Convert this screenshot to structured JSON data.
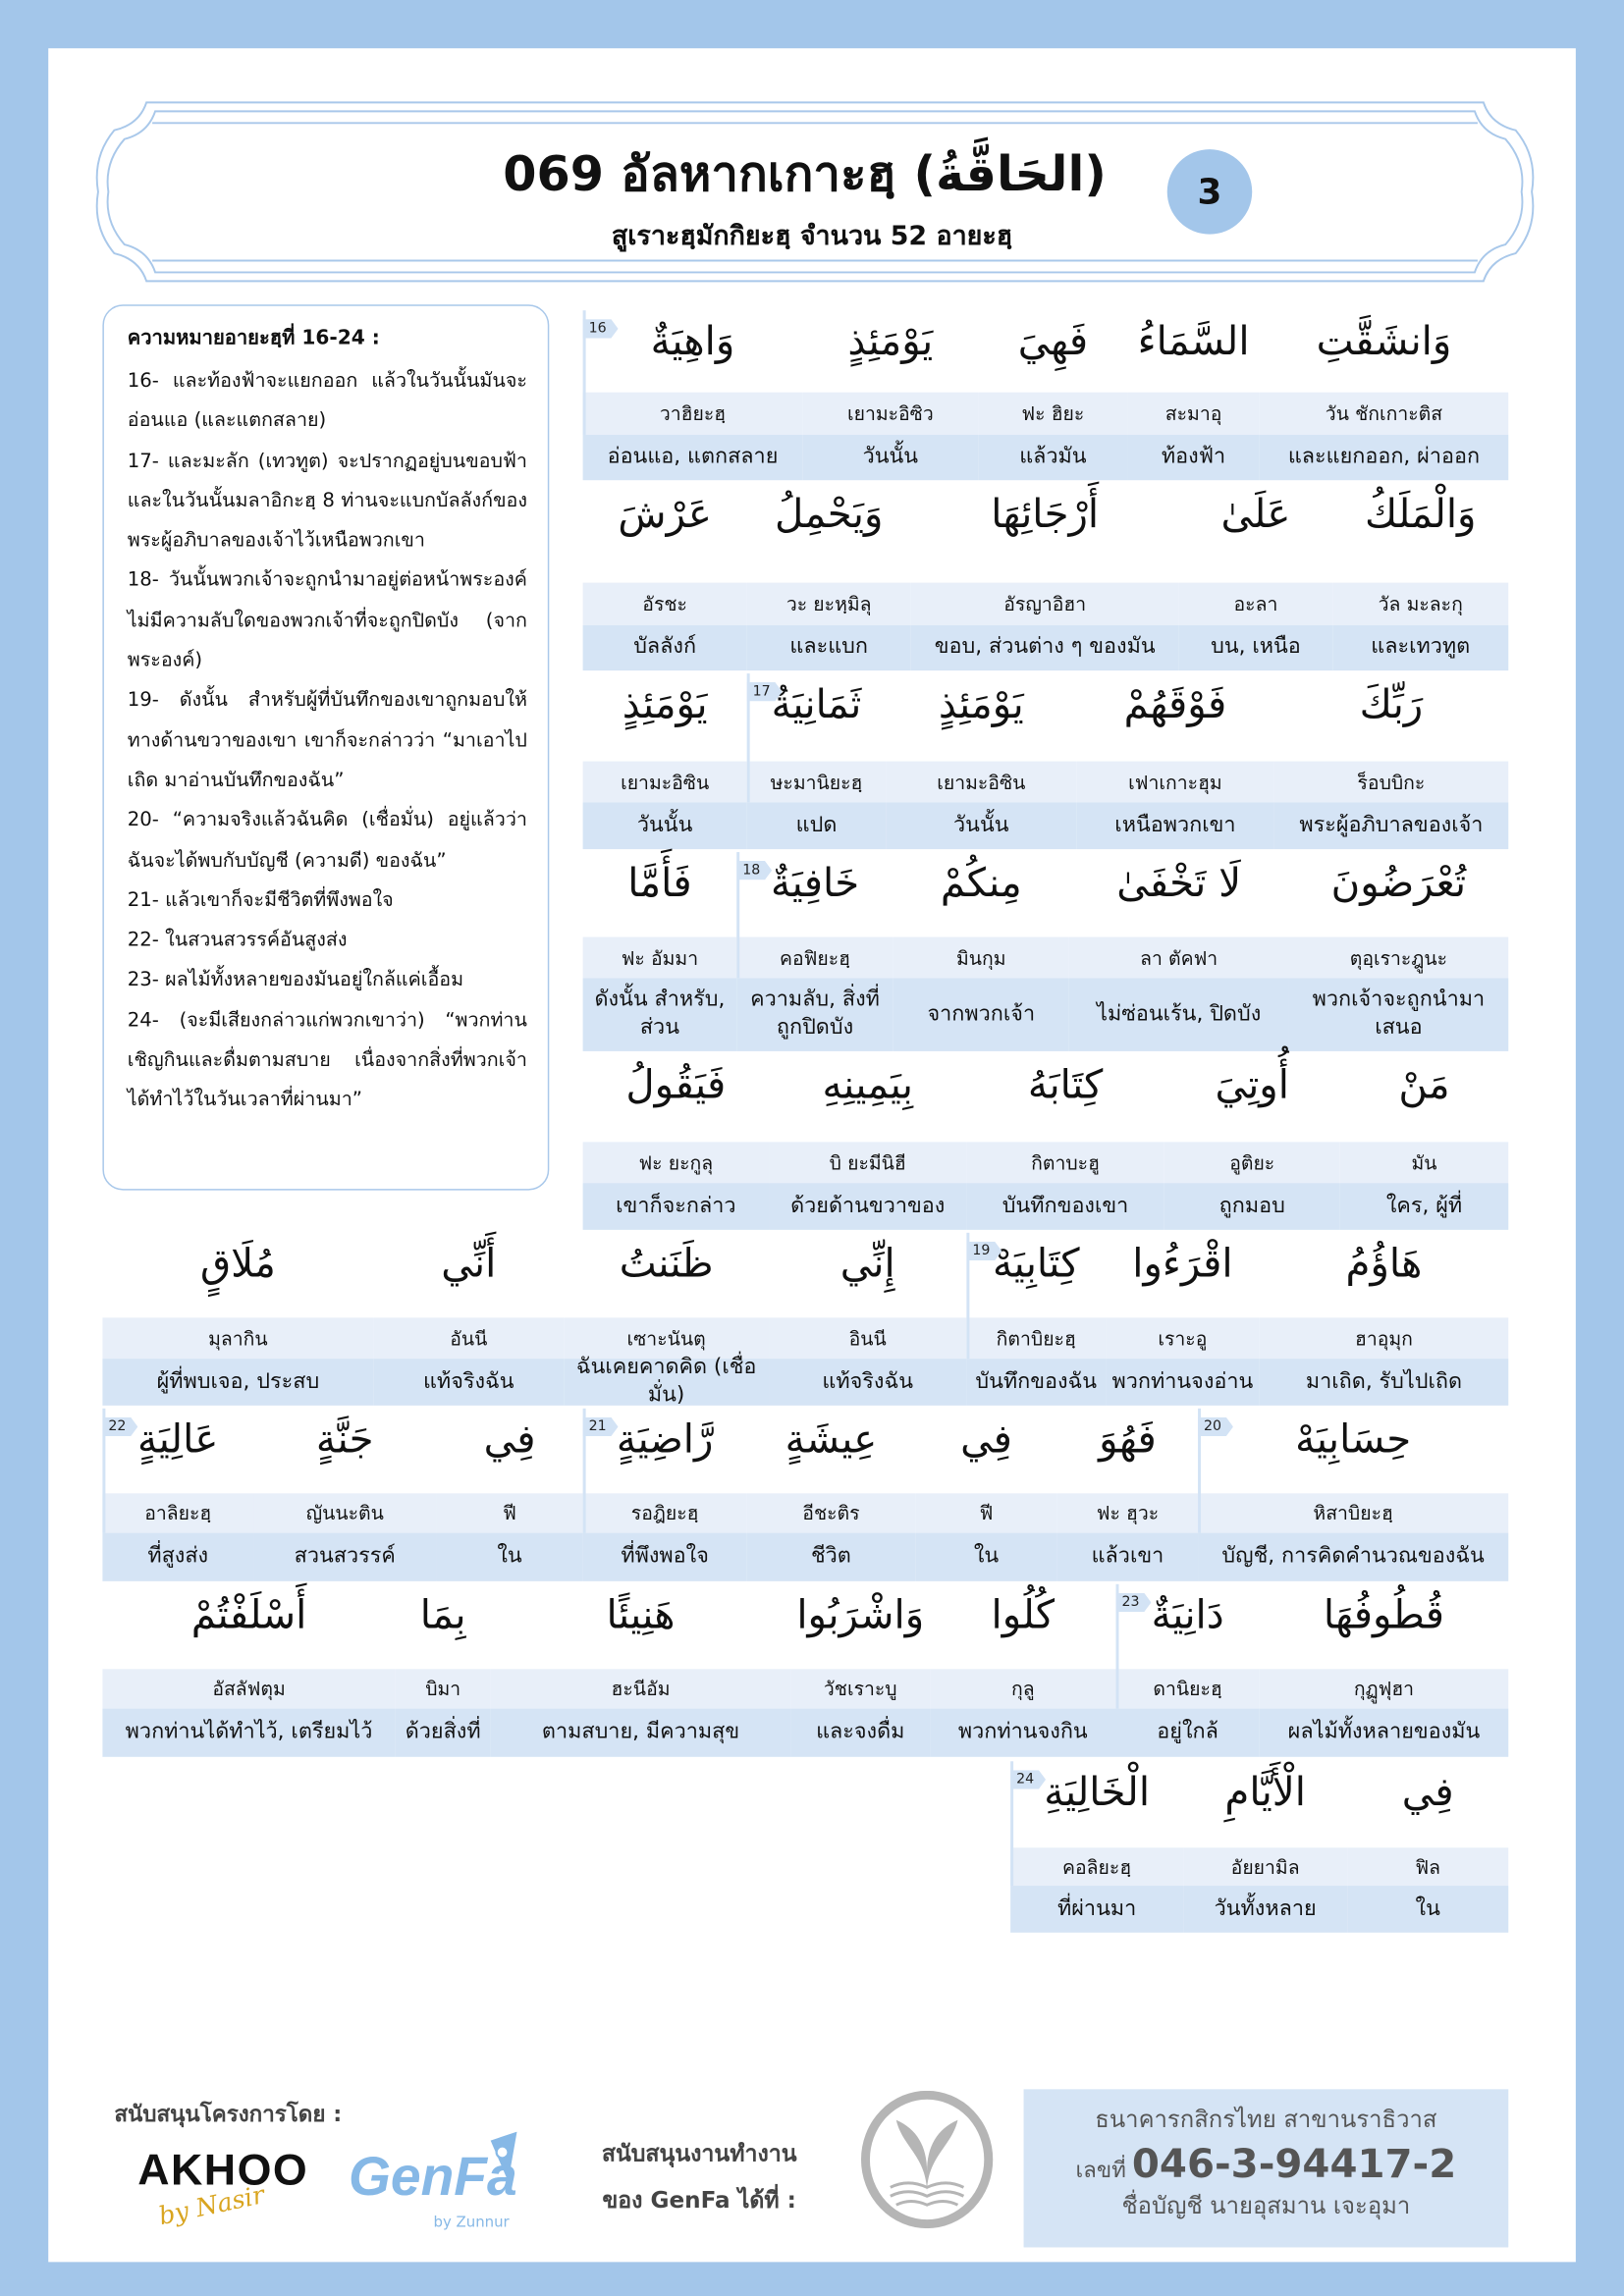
{
  "header": {
    "title": "069 อัลหากเกาะฮฺ",
    "title_arabic": "(الحَاقَّةُ)",
    "subtitle": "สูเราะฮฺมักกิยะฮฺ จำนวน 52 อายะฮฺ",
    "page_badge": "3"
  },
  "meaning": {
    "heading": "ความหมายอายะฮฺที่ 16-24 :",
    "verses": [
      "16- และท้องฟ้าจะแยกออก แล้วในวันนั้นมันจะอ่อนแอ (และแตกสลาย)",
      "17- และมะลัก (เทวทูต) จะปรากฏอยู่บนขอบฟ้าและในวันนั้นมลาอิกะฮฺ 8 ท่านจะแบกบัลลังก์ของพระผู้อภิบาลของเจ้าไว้เหนือพวกเขา",
      "18- วันนั้นพวกเจ้าจะถูกนำมาอยู่ต่อหน้าพระองค์ ไม่มีความลับใดของพวกเจ้าที่จะถูกปิดบัง (จากพระองค์)",
      "19- ดังนั้น สำหรับผู้ที่บันทึกของเขาถูกมอบให้ทางด้านขวาของเขา เขาก็จะกล่าวว่า “มาเอาไปเถิด มาอ่านบันทึกของฉัน”",
      "20- “ความจริงแล้วฉันคิด (เชื่อมั่น) อยู่แล้วว่าฉันจะได้พบกับบัญชี (ความดี) ของฉัน”",
      "21- แล้วเขาก็จะมีชีวิตที่พึงพอใจ",
      "22- ในสวนสวรรค์อันสูงส่ง",
      "23- ผลไม้ทั้งหลายของมันอยู่ใกล้แค่เอื้อม",
      "24- (จะมีเสียงกล่าวแก่พวกเขาว่า) “พวกท่านเชิญกินและดื่มตามสบาย เนื่องจากสิ่งที่พวกเจ้าได้ทำไว้ในวันเวลาที่ผ่านมา”"
    ]
  },
  "word_rows": [
    [
      {
        "ar": "وَانشَقَّتِ",
        "tr": "วัน ชักเกาะติส",
        "mn": "และแยกออก, ผ่าออก"
      },
      {
        "ar": "السَّمَاءُ",
        "tr": "สะมาอุ",
        "mn": "ท้องฟ้า"
      },
      {
        "ar": "فَهِيَ",
        "tr": "ฟะ ฮิยะ",
        "mn": "แล้วมัน"
      },
      {
        "ar": "يَوْمَئِذٍ",
        "tr": "เยามะอิซิว",
        "mn": "วันนั้น"
      },
      {
        "ar": "وَاهِيَةٌ",
        "tr": "วาฮิยะฮฺ",
        "mn": "อ่อนแอ, แตกสลาย",
        "verse": "16"
      }
    ],
    [
      {
        "ar": "وَالْمَلَكُ",
        "tr": "วัล มะละกุ",
        "mn": "และเทวทูต"
      },
      {
        "ar": "عَلَىٰ",
        "tr": "อะลา",
        "mn": "บน, เหนือ"
      },
      {
        "ar": "أَرْجَائِهَا",
        "tr": "อัรญาอิฮา",
        "mn": "ขอบ, ส่วนต่าง ๆ ของมัน"
      },
      {
        "ar": "وَيَحْمِلُ",
        "tr": "วะ ยะหฺมิลุ",
        "mn": "และแบก"
      },
      {
        "ar": "عَرْشَ",
        "tr": "อัรชะ",
        "mn": "บัลลังก์"
      }
    ],
    [
      {
        "ar": "رَبِّكَ",
        "tr": "ร็อบบิกะ",
        "mn": "พระผู้อภิบาลของเจ้า"
      },
      {
        "ar": "فَوْقَهُمْ",
        "tr": "เฟาเกาะฮุม",
        "mn": "เหนือพวกเขา"
      },
      {
        "ar": "يَوْمَئِذٍ",
        "tr": "เยามะอิซิน",
        "mn": "วันนั้น"
      },
      {
        "ar": "ثَمَانِيَةٌ",
        "tr": "ษะมานิยะฮฺ",
        "mn": "แปด",
        "verse": "17"
      },
      {
        "ar": "يَوْمَئِذٍ",
        "tr": "เยามะอิซิน",
        "mn": "วันนั้น"
      }
    ],
    [
      {
        "ar": "تُعْرَضُونَ",
        "tr": "ตุอฺเราะฎูนะ",
        "mn": "พวกเจ้าจะถูกนำมาเสนอ"
      },
      {
        "ar": "لَا تَخْفَىٰ",
        "tr": "ลา ตัคฟา",
        "mn": "ไม่ซ่อนเร้น, ปิดบัง"
      },
      {
        "ar": "مِنكُمْ",
        "tr": "มินกุม",
        "mn": "จากพวกเจ้า"
      },
      {
        "ar": "خَافِيَةٌ",
        "tr": "คอฟิยะฮฺ",
        "mn": "ความลับ, สิ่งที่ถูกปิดบัง",
        "verse": "18"
      },
      {
        "ar": "فَأَمَّا",
        "tr": "ฟะ อัมมา",
        "mn": "ดังนั้น สำหรับ, ส่วน"
      }
    ],
    [
      {
        "ar": "مَنْ",
        "tr": "มัน",
        "mn": "ใคร, ผู้ที่"
      },
      {
        "ar": "أُوتِيَ",
        "tr": "อูติยะ",
        "mn": "ถูกมอบ"
      },
      {
        "ar": "كِتَابَهُ",
        "tr": "กิตาบะฮู",
        "mn": "บันทึกของเขา"
      },
      {
        "ar": "بِيَمِينِهِ",
        "tr": "บิ ยะมีนิฮี",
        "mn": "ด้วยด้านขวาของ"
      },
      {
        "ar": "فَيَقُولُ",
        "tr": "ฟะ ยะกูลุ",
        "mn": "เขาก็จะกล่าว"
      }
    ],
    [
      {
        "ar": "هَاؤُمُ",
        "tr": "ฮาอุมุก",
        "mn": "มาเถิด, รับไปเถิด"
      },
      {
        "ar": "اقْرَءُوا",
        "tr": "เราะอู",
        "mn": "พวกท่านจงอ่าน"
      },
      {
        "ar": "كِتَابِيَهْ",
        "tr": "กิตาบิยะฮฺ",
        "mn": "บันทึกของฉัน",
        "verse": "19"
      },
      {
        "ar": "إِنِّي",
        "tr": "อินนี",
        "mn": "แท้จริงฉัน"
      },
      {
        "ar": "ظَنَنتُ",
        "tr": "เซาะนันตุ",
        "mn": "ฉันเคยคาดคิด (เชื่อมั่น)"
      },
      {
        "ar": "أَنِّي",
        "tr": "อันนี",
        "mn": "แท้จริงฉัน"
      },
      {
        "ar": "مُلَاقٍ",
        "tr": "มุลากิน",
        "mn": "ผู้ที่พบเจอ, ประสบ"
      }
    ],
    [
      {
        "ar": "حِسَابِيَهْ",
        "tr": "หิสาบิยะฮฺ",
        "mn": "บัญชี, การคิดคำนวณของฉัน",
        "verse": "20"
      },
      {
        "ar": "فَهُوَ",
        "tr": "ฟะ ฮุวะ",
        "mn": "แล้วเขา"
      },
      {
        "ar": "فِي",
        "tr": "ฟี",
        "mn": "ใน"
      },
      {
        "ar": "عِيشَةٍ",
        "tr": "อีชะติร",
        "mn": "ชีวิต"
      },
      {
        "ar": "رَّاضِيَةٍ",
        "tr": "รอฎิยะฮฺ",
        "mn": "ที่พึงพอใจ",
        "verse": "21"
      },
      {
        "ar": "فِي",
        "tr": "ฟี",
        "mn": "ใน"
      },
      {
        "ar": "جَنَّةٍ",
        "tr": "ญันนะติน",
        "mn": "สวนสวรรค์"
      },
      {
        "ar": "عَالِيَةٍ",
        "tr": "อาลิยะฮฺ",
        "mn": "ที่สูงส่ง",
        "verse": "22"
      }
    ],
    [
      {
        "ar": "قُطُوفُهَا",
        "tr": "กุฏูฟุฮา",
        "mn": "ผลไม้ทั้งหลายของมัน"
      },
      {
        "ar": "دَانِيَةٌ",
        "tr": "ดานิยะฮฺ",
        "mn": "อยู่ใกล้",
        "verse": "23"
      },
      {
        "ar": "كُلُوا",
        "tr": "กุลู",
        "mn": "พวกท่านจงกิน"
      },
      {
        "ar": "وَاشْرَبُوا",
        "tr": "วัชเราะบู",
        "mn": "และจงดื่ม"
      },
      {
        "ar": "هَنِيئًا",
        "tr": "ฮะนีอัม",
        "mn": "ตามสบาย, มีความสุข"
      },
      {
        "ar": "بِمَا",
        "tr": "บิมา",
        "mn": "ด้วยสิ่งที่"
      },
      {
        "ar": "أَسْلَفْتُمْ",
        "tr": "อัสลัฟตุม",
        "mn": "พวกท่านได้ทำไว้, เตรียมไว้"
      }
    ],
    [
      {
        "ar": "فِي",
        "tr": "ฟิล",
        "mn": "ใน"
      },
      {
        "ar": "الْأَيَّامِ",
        "tr": "อัยยามิล",
        "mn": "วันทั้งหลาย"
      },
      {
        "ar": "الْخَالِيَةِ",
        "tr": "คอลิยะฮฺ",
        "mn": "ที่ผ่านมา",
        "verse": "24"
      }
    ]
  ],
  "footer": {
    "sponsor_label": "สนับสนุนโครงการโดย :",
    "akhoo_logo": "AKHOO",
    "akhoo_sub": "by Nasir",
    "genfa_logo": "GenFa",
    "genfa_sub": "by Zunnur",
    "support_line1": "สนับสนุนงานทำงาน",
    "support_line2": "ของ GenFa ได้ที่ :",
    "bank_name": "ธนาคารกสิกรไทย สาขานราธิวาส",
    "account_label": "เลขที่",
    "account_number": "046-3-94417-2",
    "account_name": "ชื่อบัญชี นายอุสมาน เจะอุมา"
  },
  "colors": {
    "background": "#a3c6ea",
    "translit_row": "#e8eff9",
    "meaning_row": "#d5e4f5",
    "badge": "#a3c6ea"
  }
}
